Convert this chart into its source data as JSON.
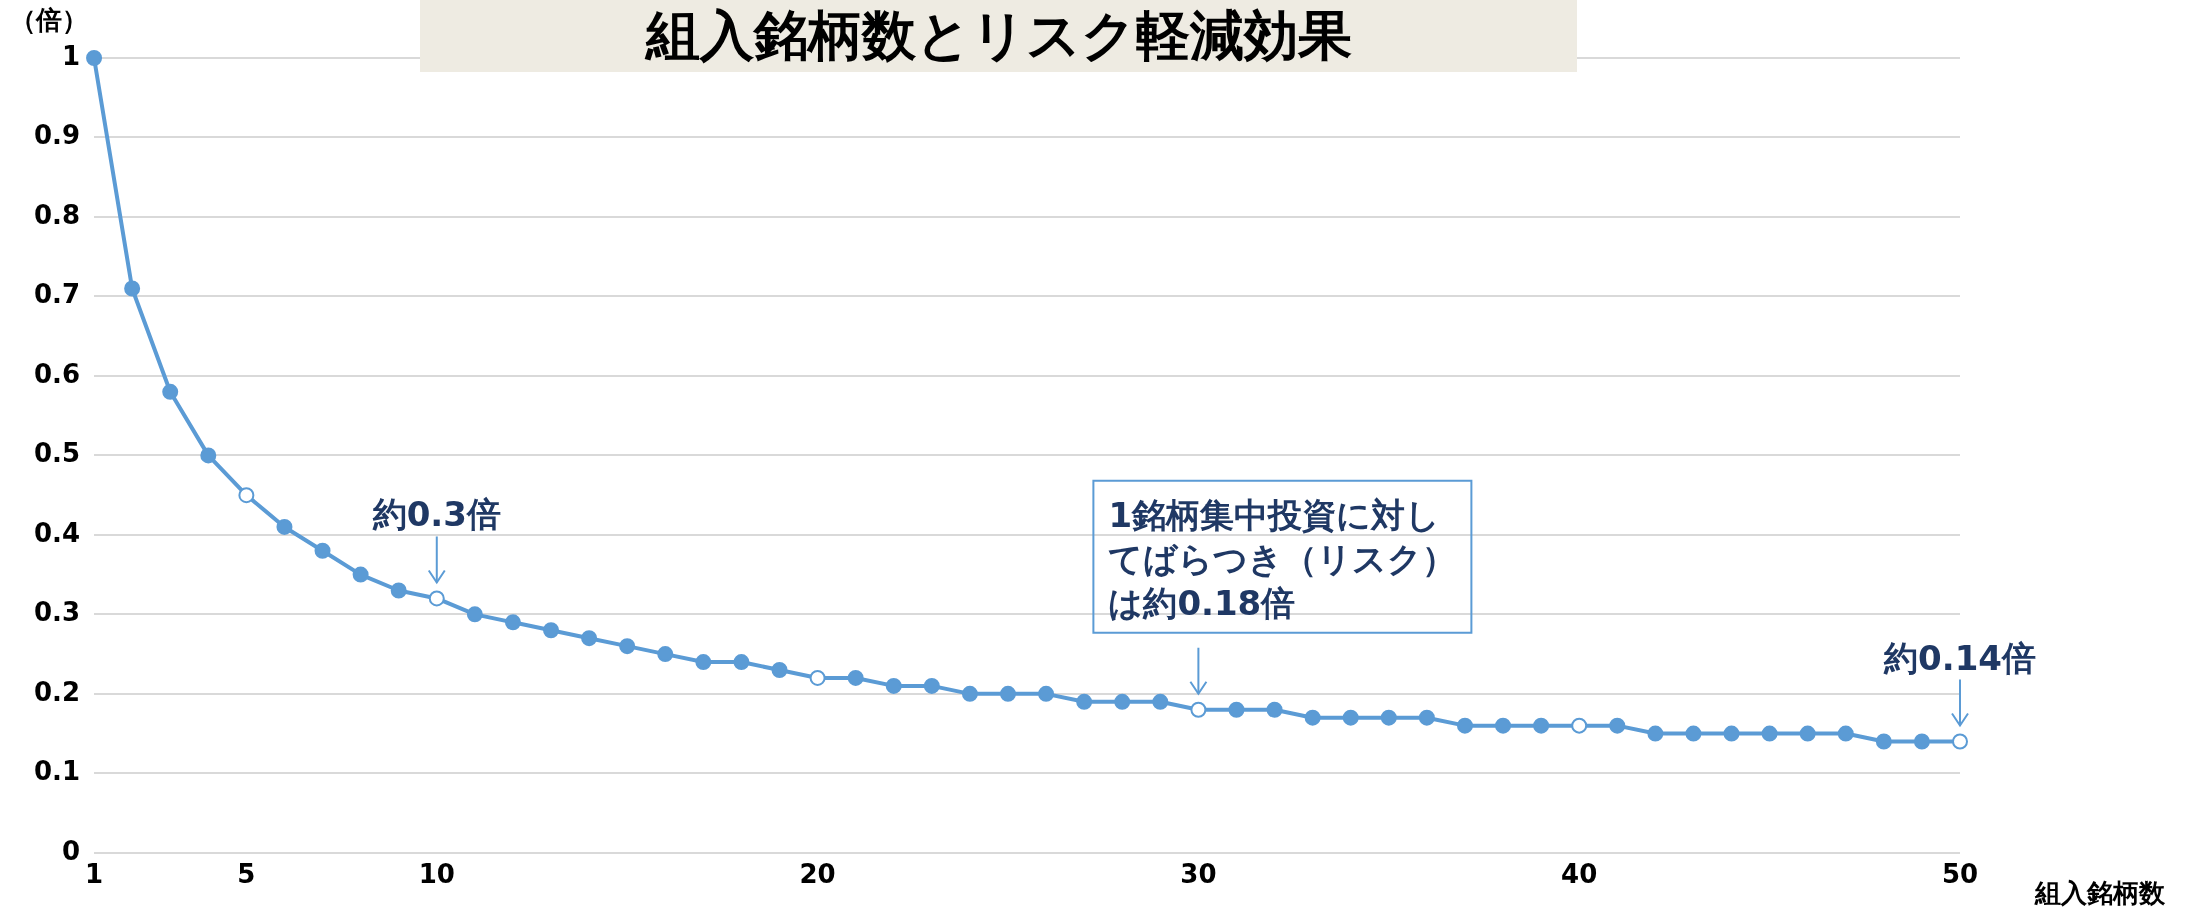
{
  "chart_data": {
    "type": "line",
    "title": "組入銘柄数とリスク軽減効果",
    "xlabel": "組入銘柄数",
    "ylabel": "（倍）",
    "x": [
      1,
      2,
      3,
      4,
      5,
      6,
      7,
      8,
      9,
      10,
      11,
      12,
      13,
      14,
      15,
      16,
      17,
      18,
      19,
      20,
      21,
      22,
      23,
      24,
      25,
      26,
      27,
      28,
      29,
      30,
      31,
      32,
      33,
      34,
      35,
      36,
      37,
      38,
      39,
      40,
      41,
      42,
      43,
      44,
      45,
      46,
      47,
      48,
      49,
      50
    ],
    "series": [
      {
        "color": "#5b9bd5",
        "colors": [
          "#5b9bd5",
          "#5b9bd5",
          "#5b9bd5",
          "#5b9bd5",
          "#ffffff",
          "#5b9bd5",
          "#5b9bd5",
          "#5b9bd5",
          "#5b9bd5",
          "#ffffff",
          "#5b9bd5",
          "#5b9bd5",
          "#5b9bd5",
          "#5b9bd5",
          "#5b9bd5",
          "#5b9bd5",
          "#5b9bd5",
          "#5b9bd5",
          "#5b9bd5",
          "#ffffff",
          "#5b9bd5",
          "#5b9bd5",
          "#5b9bd5",
          "#5b9bd5",
          "#5b9bd5",
          "#5b9bd5",
          "#5b9bd5",
          "#5b9bd5",
          "#5b9bd5",
          "#ffffff",
          "#5b9bd5",
          "#5b9bd5",
          "#5b9bd5",
          "#5b9bd5",
          "#5b9bd5",
          "#5b9bd5",
          "#5b9bd5",
          "#5b9bd5",
          "#5b9bd5",
          "#ffffff",
          "#5b9bd5",
          "#5b9bd5",
          "#5b9bd5",
          "#5b9bd5",
          "#5b9bd5",
          "#5b9bd5",
          "#5b9bd5",
          "#5b9bd5",
          "#5b9bd5",
          "#ffffff"
        ],
        "values": [
          1,
          0.71,
          0.58,
          0.5,
          0.45,
          0.41,
          0.38,
          0.35,
          0.33,
          0.32,
          0.3,
          0.29,
          0.28,
          0.27,
          0.26,
          0.25,
          0.24,
          0.24,
          0.23,
          0.22,
          0.22,
          0.21,
          0.21,
          0.2,
          0.2,
          0.2,
          0.19,
          0.19,
          0.19,
          0.18,
          0.18,
          0.18,
          0.17,
          0.17,
          0.17,
          0.17,
          0.16,
          0.16,
          0.16,
          0.16,
          0.16,
          0.15,
          0.15,
          0.15,
          0.15,
          0.15,
          0.15,
          0.14,
          0.14,
          0.14
        ]
      }
    ],
    "xlim": [
      1,
      50
    ],
    "xticks": [
      1,
      5,
      10,
      20,
      30,
      40,
      50
    ],
    "ylim": [
      0,
      1
    ],
    "yticks": [
      0,
      0.1,
      0.2,
      0.3,
      0.4,
      0.5,
      0.6,
      0.7,
      0.8,
      0.9,
      1
    ],
    "grid": "y",
    "marker": "circle",
    "annotations": [
      {
        "text": "約0.3倍",
        "x": 10,
        "y": 0.32
      },
      {
        "text": "1銘柄集中投資に対してばらつき（リスク）は約0.18倍",
        "x": 30,
        "y": 0.18
      },
      {
        "text": "約0.14倍",
        "x": 50,
        "y": 0.14
      }
    ]
  }
}
